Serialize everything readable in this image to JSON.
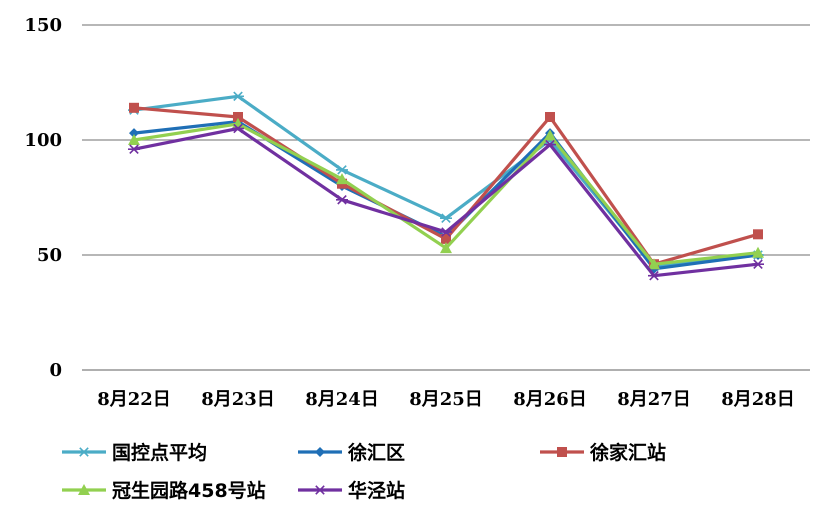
{
  "chart_data": {
    "type": "line",
    "title": "",
    "xlabel": "",
    "ylabel": "",
    "categories": [
      "8月22日",
      "8月23日",
      "8月24日",
      "8月25日",
      "8月26日",
      "8月27日",
      "8月28日"
    ],
    "ylim": [
      0,
      150
    ],
    "yticks": [
      0,
      50,
      100,
      150
    ],
    "grid": true,
    "legend_position": "bottom",
    "series": [
      {
        "name": "国控点平均",
        "color": "#4BACC6",
        "marker": "star",
        "values": [
          113,
          119,
          87,
          66,
          100,
          45,
          50
        ]
      },
      {
        "name": "徐汇区",
        "color": "#1F6FB6",
        "marker": "diamond",
        "values": [
          103,
          108,
          80,
          58,
          103,
          44,
          50
        ]
      },
      {
        "name": "徐家汇站",
        "color": "#C0504D",
        "marker": "square",
        "values": [
          114,
          110,
          81,
          57,
          110,
          46,
          59
        ]
      },
      {
        "name": "冠生园路458号站",
        "color": "#92D050",
        "marker": "triangle",
        "values": [
          100,
          107,
          83,
          53,
          102,
          46,
          51
        ]
      },
      {
        "name": "华泾站",
        "color": "#7030A0",
        "marker": "star",
        "values": [
          96,
          105,
          74,
          60,
          98,
          41,
          46
        ]
      }
    ]
  }
}
